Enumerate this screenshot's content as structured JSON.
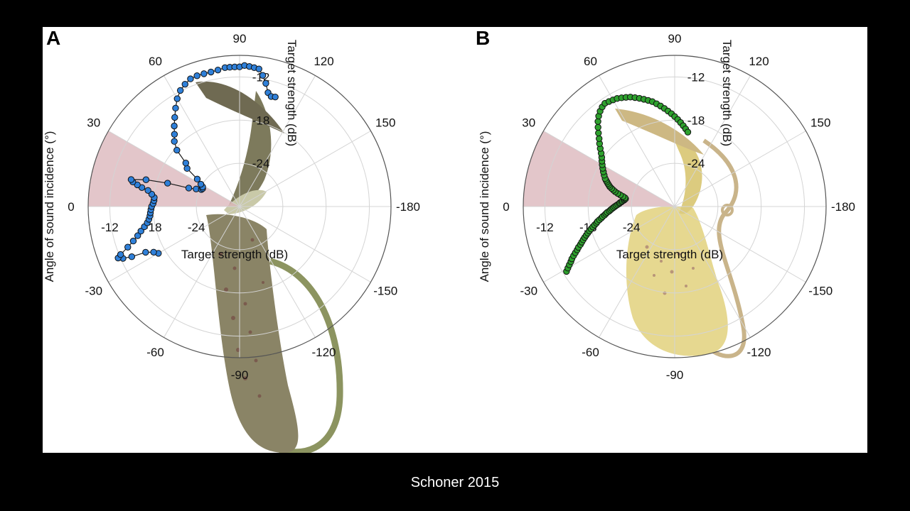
{
  "caption": "Schoner 2015",
  "colors": {
    "background": "#000000",
    "panel": "#ffffff",
    "grid": "#d4d4d4",
    "outer_ring": "#555555",
    "sector_fill": "#d9b3b8",
    "series_a": "#2f80d9",
    "series_b": "#2ea12e",
    "pitcher_a_body": "#8a8466",
    "pitcher_a_spots": "#6e3b3b",
    "pitcher_a_tendril": "#8c9460",
    "pitcher_b_body": "#e6d890",
    "pitcher_b_spots": "#9a6a6a",
    "pitcher_b_tendril": "#c9b48a"
  },
  "chart_data": [
    {
      "type": "scatter",
      "coordinate_system": "polar",
      "panel_label": "A",
      "angle_label": "Angle of sound incidence (°)",
      "radial_label_1": "Target strength (dB)",
      "radial_label_2": "Target strength (dB)",
      "angle_ticks": [
        "90",
        "120",
        "150",
        "-180",
        "-150",
        "-120",
        "-90",
        "-60",
        "-30",
        "0",
        "30",
        "60"
      ],
      "angle_tick_values": [
        90,
        120,
        150,
        180,
        -150,
        -120,
        -90,
        -60,
        -30,
        0,
        30,
        60
      ],
      "radial_ticks": [
        "-12",
        "-18",
        "-24"
      ],
      "radial_tick_values": [
        -12,
        -18,
        -24
      ],
      "rlim": [
        -30,
        -9
      ],
      "highlight_sector_deg": [
        0,
        30
      ],
      "marker_color": "#2f80d9",
      "series": [
        {
          "theta_deg": [
            -30,
            -28,
            -26,
            -25,
            -24,
            -23,
            -22,
            -20,
            -18,
            -16,
            -14,
            -12,
            -10,
            -8,
            -6,
            -4,
            -2,
            0,
            2,
            4,
            6,
            8,
            10,
            11,
            12,
            13,
            14,
            16,
            18,
            20,
            22,
            24,
            26,
            28,
            30,
            33,
            36,
            39,
            42,
            45,
            48,
            51,
            54,
            57,
            60,
            63,
            66,
            69,
            72,
            75,
            78,
            81,
            84,
            86,
            88,
            90,
            92,
            94,
            96,
            98,
            100,
            102,
            104,
            106,
            108
          ],
          "r_db": [
            -17,
            -16.5,
            -15.5,
            -13.5,
            -12.3,
            -11.7,
            -12.2,
            -13.5,
            -14.5,
            -15.3,
            -15.9,
            -16.5,
            -17,
            -17.3,
            -17.5,
            -17.6,
            -17.7,
            -17.8,
            -18.0,
            -18.1,
            -18.1,
            -17.7,
            -17.1,
            -16.2,
            -15.5,
            -14.8,
            -14.5,
            -16.5,
            -19.5,
            -22.5,
            -23.5,
            -24.2,
            -24.3,
            -24.2,
            -23.8,
            -23.0,
            -21.0,
            -20.4,
            -18.3,
            -17.2,
            -16.5,
            -15.6,
            -14.7,
            -13.7,
            -12.7,
            -11.9,
            -11.4,
            -11.0,
            -10.9,
            -10.9,
            -10.9,
            -10.8,
            -10.6,
            -10.6,
            -10.6,
            -10.6,
            -10.4,
            -10.5,
            -10.6,
            -10.7,
            -11.5,
            -12.5,
            -13.7,
            -14.1,
            -14.0
          ]
        }
      ]
    },
    {
      "type": "scatter",
      "coordinate_system": "polar",
      "panel_label": "B",
      "angle_label": "Angle of sound incidence (°)",
      "radial_label_1": "Target strength (dB)",
      "radial_label_2": "Target strength (dB)",
      "angle_ticks": [
        "90",
        "120",
        "150",
        "-180",
        "-150",
        "-120",
        "-90",
        "-60",
        "-30",
        "0",
        "30",
        "60"
      ],
      "angle_tick_values": [
        90,
        120,
        150,
        180,
        -150,
        -120,
        -90,
        -60,
        -30,
        0,
        30,
        60
      ],
      "radial_ticks": [
        "-12",
        "-18",
        "-24"
      ],
      "radial_tick_values": [
        -12,
        -18,
        -24
      ],
      "rlim": [
        -30,
        -9
      ],
      "highlight_sector_deg": [
        0,
        30
      ],
      "marker_color": "#2ea12e",
      "series": [
        {
          "theta_deg": [
            -31,
            -30,
            -29,
            -28,
            -27,
            -26,
            -25,
            -24,
            -23,
            -22,
            -21,
            -20,
            -19,
            -18,
            -17,
            -16,
            -15,
            -14,
            -13,
            -12,
            -11,
            -10,
            -9,
            -8,
            -7,
            -6,
            -5,
            -4,
            -3,
            -2,
            -1,
            0,
            1,
            2,
            3,
            4,
            5,
            6,
            7,
            8,
            9,
            10,
            11,
            12,
            13,
            14,
            15,
            16,
            17,
            18,
            19,
            20,
            21,
            22,
            24,
            26,
            28,
            30,
            32,
            34,
            36,
            38,
            40,
            42,
            44,
            46,
            48,
            50,
            52,
            54,
            56,
            58,
            60,
            62,
            64,
            66,
            68,
            70,
            72,
            74,
            76,
            78,
            80,
            82,
            84,
            86,
            88,
            90,
            92,
            94,
            96,
            98,
            100
          ],
          "r_db": [
            -12.5,
            -12.9,
            -13.3,
            -13.7,
            -14.0,
            -14.4,
            -14.8,
            -15.2,
            -15.5,
            -15.9,
            -16.2,
            -16.5,
            -16.8,
            -17.1,
            -17.4,
            -17.7,
            -18.0,
            -18.3,
            -18.6,
            -18.9,
            -19.1,
            -19.4,
            -19.7,
            -19.9,
            -20.2,
            -20.4,
            -20.6,
            -20.9,
            -21.1,
            -21.3,
            -21.5,
            -21.7,
            -21.9,
            -22.1,
            -22.3,
            -22.4,
            -22.6,
            -22.7,
            -22.9,
            -23.0,
            -23.1,
            -23.0,
            -22.7,
            -22.3,
            -21.9,
            -21.5,
            -21.2,
            -20.9,
            -20.6,
            -20.4,
            -20.2,
            -20.0,
            -19.8,
            -19.6,
            -19.3,
            -19.0,
            -18.7,
            -18.4,
            -18.1,
            -17.8,
            -17.4,
            -16.9,
            -16.4,
            -15.9,
            -15.3,
            -14.7,
            -14.1,
            -13.6,
            -13.2,
            -12.9,
            -12.7,
            -12.8,
            -12.9,
            -13.0,
            -13.2,
            -13.4,
            -13.6,
            -13.9,
            -14.2,
            -14.5,
            -14.8,
            -15.1,
            -15.5,
            -15.9,
            -16.3,
            -16.7,
            -17.1,
            -17.5,
            -17.9,
            -18.3,
            -18.7,
            -19.1,
            -19.5
          ]
        }
      ]
    }
  ]
}
